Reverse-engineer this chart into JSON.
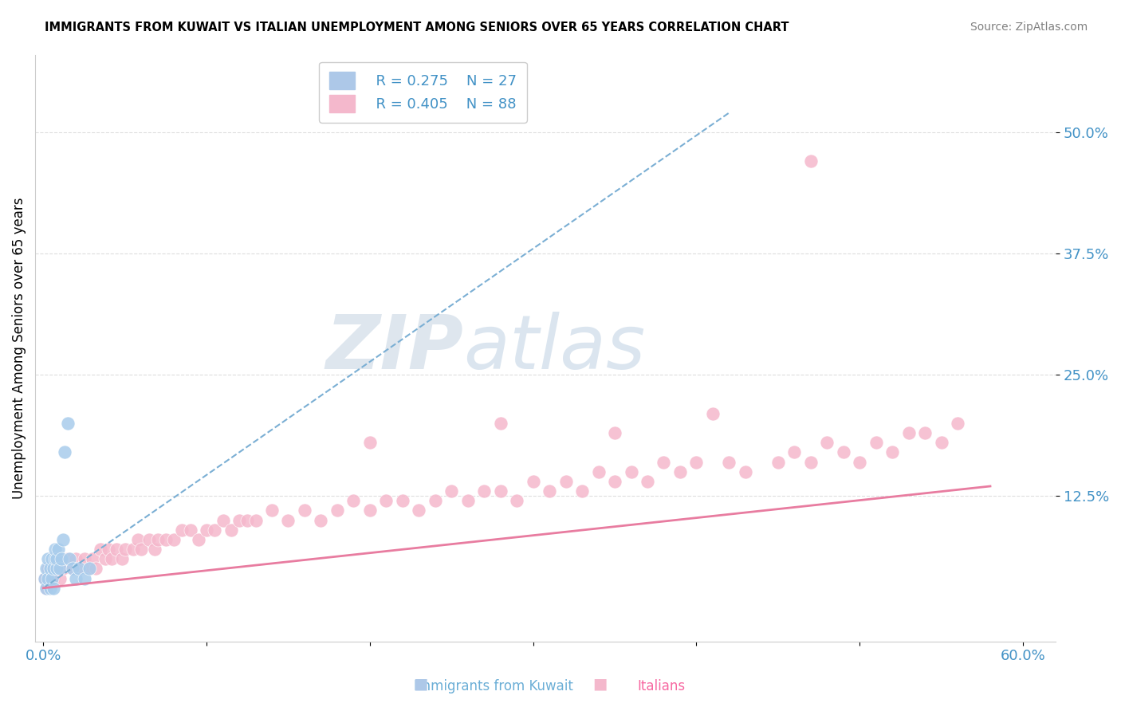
{
  "title": "IMMIGRANTS FROM KUWAIT VS ITALIAN UNEMPLOYMENT AMONG SENIORS OVER 65 YEARS CORRELATION CHART",
  "source": "Source: ZipAtlas.com",
  "xlabel_blue": "Immigrants from Kuwait",
  "xlabel_pink": "Italians",
  "ylabel": "Unemployment Among Seniors over 65 years",
  "xlim": [
    -0.005,
    0.62
  ],
  "ylim": [
    -0.025,
    0.58
  ],
  "xticks": [
    0.0,
    0.1,
    0.2,
    0.3,
    0.4,
    0.5,
    0.6
  ],
  "yticks": [
    0.125,
    0.25,
    0.375,
    0.5
  ],
  "ytick_labels": [
    "12.5%",
    "25.0%",
    "37.5%",
    "50.0%"
  ],
  "legend_R_blue": "0.275",
  "legend_N_blue": "27",
  "legend_R_pink": "0.405",
  "legend_N_pink": "88",
  "blue_color": "#a8ccec",
  "pink_color": "#f5b8cc",
  "blue_line_color": "#7bafd4",
  "pink_line_color": "#e87ca0",
  "watermark_zip": "ZIP",
  "watermark_atlas": "atlas",
  "blue_scatter_x": [
    0.001,
    0.002,
    0.002,
    0.003,
    0.003,
    0.004,
    0.004,
    0.005,
    0.005,
    0.006,
    0.006,
    0.007,
    0.007,
    0.008,
    0.008,
    0.009,
    0.01,
    0.011,
    0.012,
    0.013,
    0.015,
    0.016,
    0.018,
    0.02,
    0.022,
    0.025,
    0.028
  ],
  "blue_scatter_y": [
    0.04,
    0.05,
    0.03,
    0.06,
    0.04,
    0.05,
    0.03,
    0.06,
    0.04,
    0.05,
    0.03,
    0.06,
    0.07,
    0.05,
    0.06,
    0.07,
    0.05,
    0.06,
    0.08,
    0.17,
    0.2,
    0.06,
    0.05,
    0.04,
    0.05,
    0.04,
    0.05
  ],
  "pink_scatter_x": [
    0.001,
    0.002,
    0.003,
    0.004,
    0.005,
    0.006,
    0.008,
    0.01,
    0.012,
    0.015,
    0.018,
    0.02,
    0.022,
    0.025,
    0.028,
    0.03,
    0.032,
    0.035,
    0.038,
    0.04,
    0.042,
    0.045,
    0.048,
    0.05,
    0.055,
    0.058,
    0.06,
    0.065,
    0.068,
    0.07,
    0.075,
    0.08,
    0.085,
    0.09,
    0.095,
    0.1,
    0.105,
    0.11,
    0.115,
    0.12,
    0.125,
    0.13,
    0.14,
    0.15,
    0.16,
    0.17,
    0.18,
    0.19,
    0.2,
    0.21,
    0.22,
    0.23,
    0.24,
    0.25,
    0.26,
    0.27,
    0.28,
    0.29,
    0.3,
    0.31,
    0.32,
    0.33,
    0.34,
    0.35,
    0.36,
    0.37,
    0.38,
    0.39,
    0.4,
    0.42,
    0.43,
    0.45,
    0.46,
    0.47,
    0.48,
    0.49,
    0.5,
    0.51,
    0.52,
    0.53,
    0.54,
    0.55,
    0.56,
    0.2,
    0.28,
    0.35,
    0.41,
    0.47
  ],
  "pink_scatter_y": [
    0.04,
    0.03,
    0.05,
    0.04,
    0.05,
    0.04,
    0.05,
    0.04,
    0.05,
    0.06,
    0.05,
    0.06,
    0.05,
    0.06,
    0.05,
    0.06,
    0.05,
    0.07,
    0.06,
    0.07,
    0.06,
    0.07,
    0.06,
    0.07,
    0.07,
    0.08,
    0.07,
    0.08,
    0.07,
    0.08,
    0.08,
    0.08,
    0.09,
    0.09,
    0.08,
    0.09,
    0.09,
    0.1,
    0.09,
    0.1,
    0.1,
    0.1,
    0.11,
    0.1,
    0.11,
    0.1,
    0.11,
    0.12,
    0.11,
    0.12,
    0.12,
    0.11,
    0.12,
    0.13,
    0.12,
    0.13,
    0.13,
    0.12,
    0.14,
    0.13,
    0.14,
    0.13,
    0.15,
    0.14,
    0.15,
    0.14,
    0.16,
    0.15,
    0.16,
    0.16,
    0.15,
    0.16,
    0.17,
    0.16,
    0.18,
    0.17,
    0.16,
    0.18,
    0.17,
    0.19,
    0.19,
    0.18,
    0.2,
    0.18,
    0.2,
    0.19,
    0.21,
    0.47
  ],
  "blue_trend_x0": 0.0,
  "blue_trend_x1": 0.42,
  "blue_trend_y0": 0.03,
  "blue_trend_y1": 0.52,
  "pink_trend_x0": 0.0,
  "pink_trend_x1": 0.58,
  "pink_trend_y0": 0.03,
  "pink_trend_y1": 0.135
}
